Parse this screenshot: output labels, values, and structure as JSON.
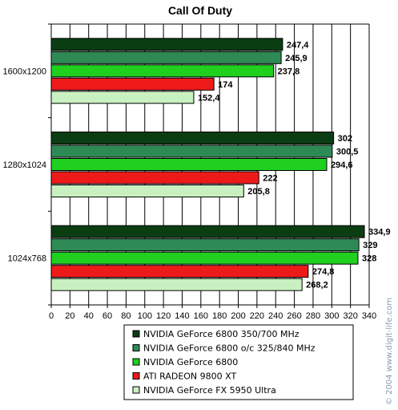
{
  "chart_data": {
    "type": "bar",
    "orientation": "horizontal",
    "title": "Call Of Duty",
    "categories": [
      "1600x1200",
      "1280x1024",
      "1024x768"
    ],
    "series": [
      {
        "name": "NVIDIA GeForce 6800 350/700 MHz",
        "values": [
          247.4,
          302,
          334.9
        ],
        "labels": [
          "247,4",
          "302",
          "334,9"
        ],
        "color": "#0b3d13"
      },
      {
        "name": "NVIDIA GeForce 6800 o/c 325/840 MHz",
        "values": [
          245.9,
          300.5,
          329
        ],
        "labels": [
          "245,9",
          "300,5",
          "329"
        ],
        "color": "#2e8a55"
      },
      {
        "name": "NVIDIA GeForce 6800",
        "values": [
          237.8,
          294.6,
          328
        ],
        "labels": [
          "237,8",
          "294,6",
          "328"
        ],
        "color": "#1fd01f"
      },
      {
        "name": "ATI RADEON 9800 XT",
        "values": [
          174,
          222,
          274.8
        ],
        "labels": [
          "174",
          "222",
          "274,8"
        ],
        "color": "#ee1a1a"
      },
      {
        "name": "NVIDIA GeForce FX 5950 Ultra",
        "values": [
          152.4,
          205.8,
          268.2
        ],
        "labels": [
          "152,4",
          "205,8",
          "268,2"
        ],
        "color": "#c8f0c0"
      }
    ],
    "xlim": [
      0,
      340
    ],
    "xticks": [
      "0",
      "20",
      "40",
      "60",
      "80",
      "100",
      "120",
      "140",
      "160",
      "180",
      "200",
      "220",
      "240",
      "260",
      "280",
      "300",
      "320",
      "340"
    ],
    "grid": true,
    "legend_position": "bottom"
  },
  "watermark": "© 2004 www.digit-life.com"
}
